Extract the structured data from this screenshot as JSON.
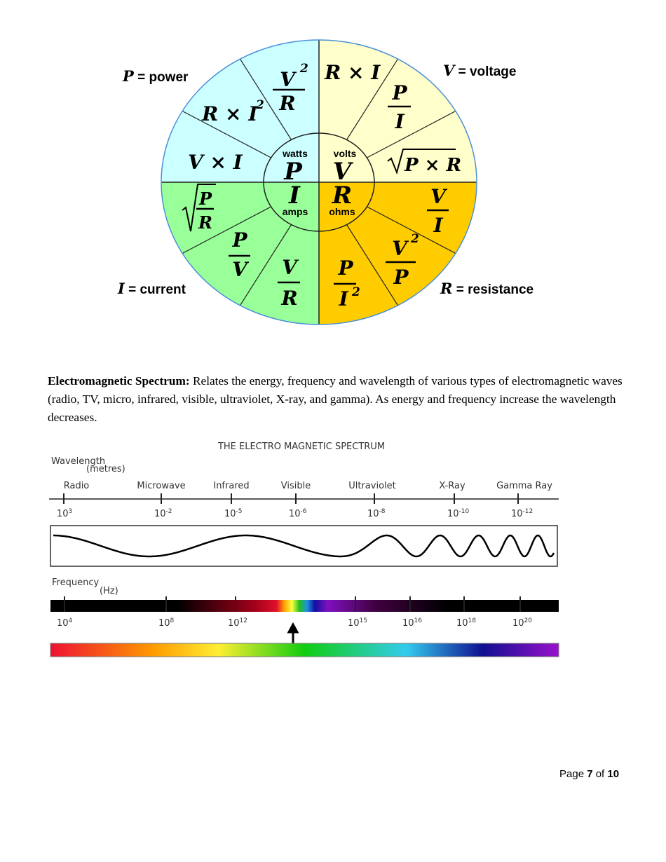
{
  "wheel": {
    "colors": {
      "power": "#ccffff",
      "voltage": "#ffffcc",
      "current": "#99ff99",
      "resistance": "#ffcc00",
      "outline": "#4a90d9"
    },
    "legend": {
      "power": {
        "symbol": "P",
        "text": "= power"
      },
      "voltage": {
        "symbol": "V",
        "text": "= voltage"
      },
      "current": {
        "symbol": "I",
        "text": "= current"
      },
      "resistance": {
        "symbol": "R",
        "text": "= resistance"
      }
    },
    "center": {
      "power": {
        "symbol": "P",
        "unit": "watts"
      },
      "voltage": {
        "symbol": "V",
        "unit": "volts"
      },
      "current": {
        "symbol": "I",
        "unit": "amps"
      },
      "resistance": {
        "symbol": "R",
        "unit": "ohms"
      }
    },
    "formulas": {
      "p1": {
        "num": "V",
        "sup": "2",
        "den": "R"
      },
      "p2": {
        "a": "R × I",
        "sup": "2"
      },
      "p3": {
        "a": "V × I"
      },
      "v1": {
        "a": "R × I"
      },
      "v2": {
        "num": "P",
        "den": "I"
      },
      "v3": {
        "a": "P × R"
      },
      "i1": {
        "num": "P",
        "den": "R"
      },
      "i2": {
        "num": "P",
        "den": "V"
      },
      "i3": {
        "num": "V",
        "den": "R"
      },
      "r1": {
        "num": "V",
        "den": "I"
      },
      "r2": {
        "num": "V",
        "sup": "2",
        "den": "P"
      },
      "r3": {
        "num": "P",
        "den": "I",
        "densup": "2"
      }
    }
  },
  "paragraph": {
    "heading": "Electromagnetic Spectrum:",
    "body": " Relates the energy, frequency and wavelength of various types of electromagnetic waves (radio, TV, micro, infrared, visible, ultraviolet, X-ray, and gamma). As energy and frequency increase the wavelength decreases."
  },
  "spectrum": {
    "title": "THE ELECTRO MAGNETIC SPECTRUM",
    "wavelength_label": "Wavelength",
    "wavelength_unit": "(metres)",
    "frequency_label": "Frequency",
    "frequency_unit": "(Hz)",
    "bands": [
      "Radio",
      "Microwave",
      "Infrared",
      "Visible",
      "Ultraviolet",
      "X-Ray",
      "Gamma Ray"
    ],
    "wavelength_ticks": [
      {
        "base": "10",
        "exp": "3"
      },
      {
        "base": "10",
        "exp": "-2"
      },
      {
        "base": "10",
        "exp": "-5"
      },
      {
        "base": "10",
        "exp": "-6"
      },
      {
        "base": "10",
        "exp": "-8"
      },
      {
        "base": "10",
        "exp": "-10"
      },
      {
        "base": "10",
        "exp": "-12"
      }
    ],
    "frequency_ticks": [
      {
        "base": "10",
        "exp": "4"
      },
      {
        "base": "10",
        "exp": "8"
      },
      {
        "base": "10",
        "exp": "12"
      },
      {
        "base": "10",
        "exp": "15"
      },
      {
        "base": "10",
        "exp": "16"
      },
      {
        "base": "10",
        "exp": "18"
      },
      {
        "base": "10",
        "exp": "20"
      }
    ]
  },
  "footer": {
    "prefix": "Page ",
    "current": "7",
    "middle": " of ",
    "total": "10"
  }
}
